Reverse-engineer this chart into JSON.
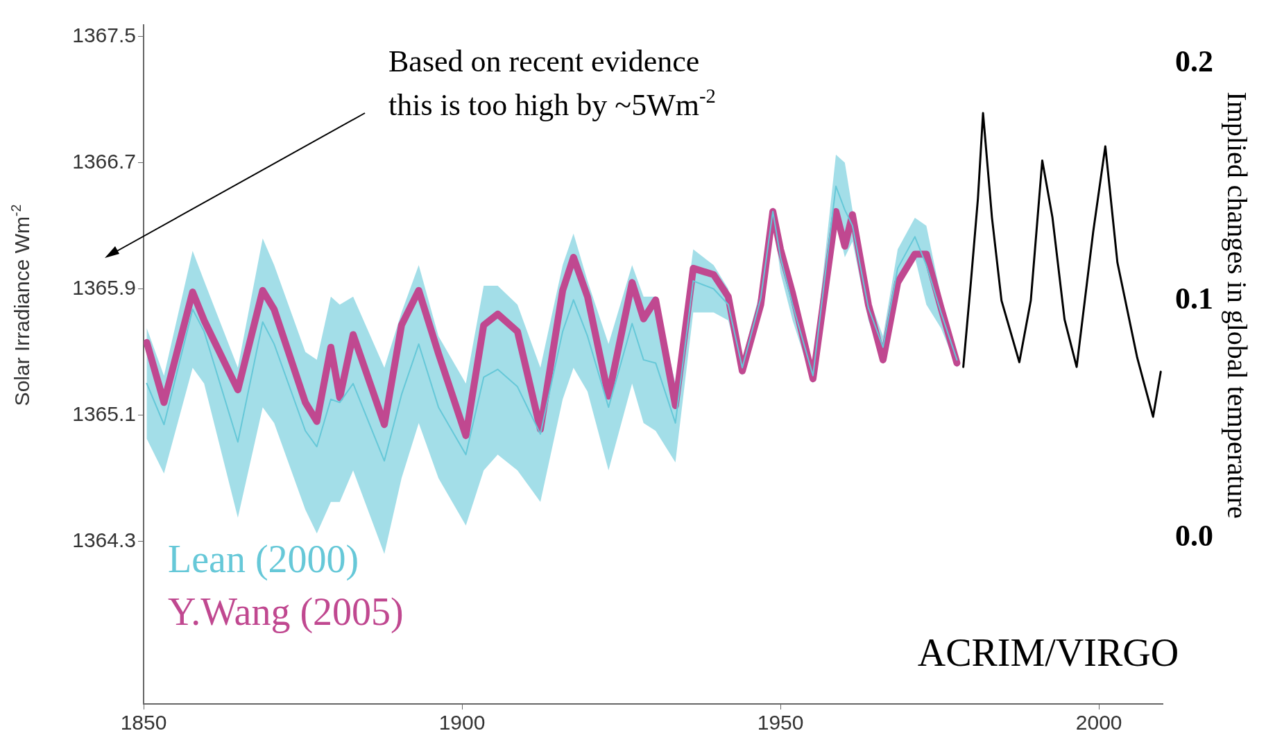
{
  "chart_data": {
    "type": "line",
    "xlabel": null,
    "ylabel": "Solar Irradiance Wm$^{-2}$",
    "y2label": "Implied changes in global temperature",
    "xlim": [
      1850,
      2010
    ],
    "xticks": [
      1850,
      1900,
      1950,
      2000
    ],
    "ylim": [
      1363.27,
      1367.57
    ],
    "yticks": [
      1364.3,
      1365.1,
      1365.9,
      1366.7,
      1367.5
    ],
    "y2lim": [
      -0.07,
      0.216
    ],
    "y2ticks": [
      {
        "value": 0,
        "label": "0.0"
      },
      {
        "value": 0.1,
        "label": "0.1"
      },
      {
        "value": 0.2,
        "label": "0.2"
      }
    ],
    "grid": false,
    "legend": "bottom left",
    "marker": "none",
    "line_style": "solid",
    "annotations": [
      "Based on recent evidence this is too high by ~5Wm$^{-2}$"
    ],
    "x": [
      1850.5,
      1853.2,
      1857.7,
      1859.5,
      1864.8,
      1868.7,
      1870.5,
      1875.4,
      1877.2,
      1879.4,
      1880.8,
      1882.9,
      1887.8,
      1890.5,
      1893.2,
      1896.3,
      1900.6,
      1903.4,
      1905.6,
      1908.7,
      1912.3,
      1915.8,
      1917.5,
      1919.7,
      1923.0,
      1926.7,
      1928.5,
      1930.4,
      1933.5,
      1936.3,
      1939.5,
      1941.8,
      1944.0,
      1946.9,
      1948.8,
      1950.0,
      1951.9,
      1955.1,
      1958.7,
      1960.1,
      1961.3,
      1963.8,
      1966.1,
      1968.4,
      1971.1,
      1972.9,
      1975.2,
      1977.7
    ],
    "series": [
      {
        "name": "Lean (2000)",
        "color": "#66c8d8",
        "values": [
          1365.3,
          1365.04,
          1365.77,
          1365.63,
          1364.93,
          1365.69,
          1365.55,
          1365.0,
          1364.9,
          1365.2,
          1365.18,
          1365.3,
          1364.81,
          1365.23,
          1365.55,
          1365.15,
          1364.85,
          1365.34,
          1365.39,
          1365.28,
          1364.98,
          1365.63,
          1365.83,
          1365.6,
          1365.15,
          1365.68,
          1365.45,
          1365.43,
          1365.05,
          1365.95,
          1365.9,
          1365.8,
          1365.4,
          1365.84,
          1366.39,
          1366.1,
          1365.8,
          1365.35,
          1366.55,
          1366.4,
          1366.3,
          1365.78,
          1365.53,
          1366.03,
          1366.23,
          1366.05,
          1365.75,
          1365.45
        ],
        "lower": [
          1364.95,
          1364.73,
          1365.4,
          1365.3,
          1364.45,
          1365.15,
          1365.05,
          1364.5,
          1364.35,
          1364.55,
          1364.55,
          1364.75,
          1364.22,
          1364.7,
          1365.05,
          1364.7,
          1364.4,
          1364.75,
          1364.85,
          1364.75,
          1364.55,
          1365.2,
          1365.4,
          1365.25,
          1364.75,
          1365.3,
          1365.05,
          1365.0,
          1364.8,
          1365.75,
          1365.75,
          1365.7,
          1365.35,
          1365.78,
          1366.35,
          1366.0,
          1365.7,
          1365.3,
          1366.35,
          1366.1,
          1366.2,
          1365.7,
          1365.45,
          1365.9,
          1366.1,
          1365.8,
          1365.65,
          1365.4
        ],
        "upper": [
          1365.65,
          1365.35,
          1366.14,
          1365.95,
          1365.4,
          1366.22,
          1366.05,
          1365.5,
          1365.45,
          1365.85,
          1365.8,
          1365.85,
          1365.4,
          1365.75,
          1366.05,
          1365.6,
          1365.3,
          1365.92,
          1365.92,
          1365.8,
          1365.4,
          1366.05,
          1366.25,
          1365.95,
          1365.55,
          1366.05,
          1365.85,
          1365.85,
          1365.3,
          1366.15,
          1366.05,
          1365.9,
          1365.45,
          1365.9,
          1366.42,
          1366.2,
          1365.9,
          1365.4,
          1366.75,
          1366.7,
          1366.4,
          1365.85,
          1365.6,
          1366.15,
          1366.35,
          1366.3,
          1365.85,
          1365.5
        ]
      },
      {
        "name": "Y.Wang (2005)",
        "color": "#c04890",
        "values": [
          1365.56,
          1365.18,
          1365.88,
          1365.7,
          1365.26,
          1365.89,
          1365.77,
          1365.18,
          1365.06,
          1365.53,
          1365.21,
          1365.61,
          1365.04,
          1365.67,
          1365.89,
          1365.49,
          1364.97,
          1365.67,
          1365.74,
          1365.63,
          1365.01,
          1365.89,
          1366.1,
          1365.85,
          1365.22,
          1365.94,
          1365.71,
          1365.83,
          1365.16,
          1366.03,
          1365.99,
          1365.85,
          1365.38,
          1365.8,
          1366.39,
          1366.15,
          1365.87,
          1365.33,
          1366.39,
          1366.17,
          1366.37,
          1365.8,
          1365.45,
          1365.94,
          1366.12,
          1366.12,
          1365.78,
          1365.43
        ]
      },
      {
        "name": "ACRIM/VIRGO",
        "color": "#000000",
        "axis": "y2",
        "x": [
          1978.7,
          1979.9,
          1981.0,
          1981.8,
          1983.2,
          1984.7,
          1987.5,
          1989.3,
          1991.1,
          1992.7,
          1994.6,
          1996.5,
          1999.1,
          2001.0,
          2002.9,
          2006.0,
          2008.5,
          2009.7
        ],
        "values": [
          0.072,
          0.108,
          0.143,
          0.179,
          0.135,
          0.1,
          0.074,
          0.1,
          0.159,
          0.135,
          0.092,
          0.072,
          0.129,
          0.165,
          0.116,
          0.076,
          0.051,
          0.07
        ]
      }
    ]
  }
}
